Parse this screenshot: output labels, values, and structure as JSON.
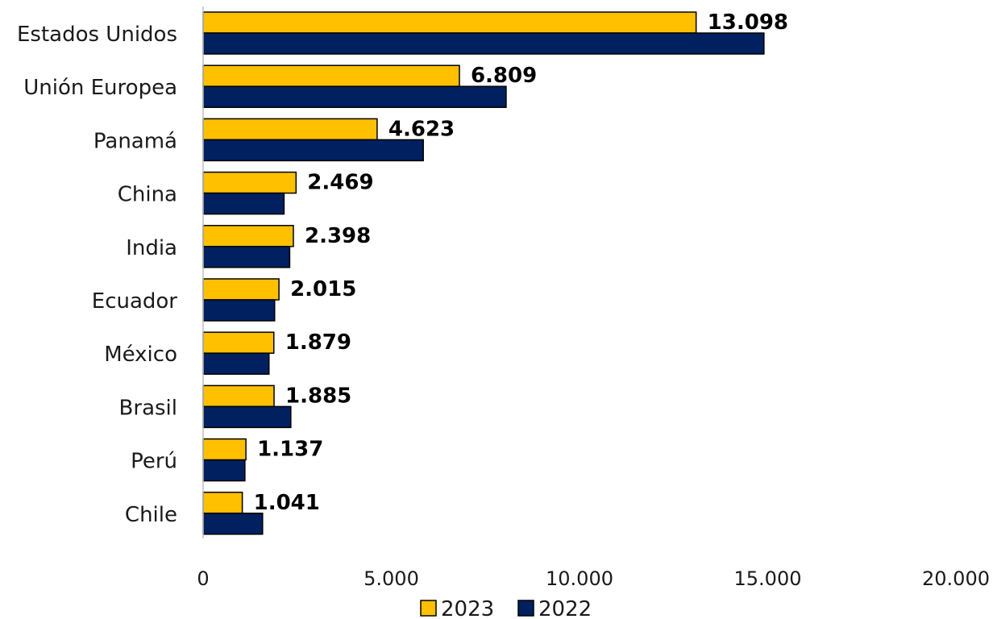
{
  "chart_data": {
    "type": "bar",
    "orientation": "horizontal",
    "categories": [
      "Estados Unidos",
      "Unión Europea",
      "Panamá",
      "China",
      "India",
      "Ecuador",
      "México",
      "Brasil",
      "Perú",
      "Chile"
    ],
    "series": [
      {
        "name": "2023",
        "color": "#FFC000",
        "values": [
          13098,
          6809,
          4623,
          2469,
          2398,
          2015,
          1879,
          1885,
          1137,
          1041
        ],
        "labels": [
          "13.098",
          "6.809",
          "4.623",
          "2.469",
          "2.398",
          "2.015",
          "1.879",
          "1.885",
          "1.137",
          "1.041"
        ]
      },
      {
        "name": "2022",
        "color": "#002060",
        "values": [
          14900,
          8050,
          5850,
          2150,
          2300,
          1900,
          1750,
          2330,
          1110,
          1580
        ]
      }
    ],
    "xlim": [
      0,
      20000
    ],
    "xticks": [
      0,
      5000,
      10000,
      15000,
      20000
    ],
    "xtick_labels": [
      "0",
      "5.000",
      "10.000",
      "15.000",
      "20.000"
    ],
    "grid": false,
    "legend_position": "bottom",
    "bar_outline": "#000000"
  }
}
